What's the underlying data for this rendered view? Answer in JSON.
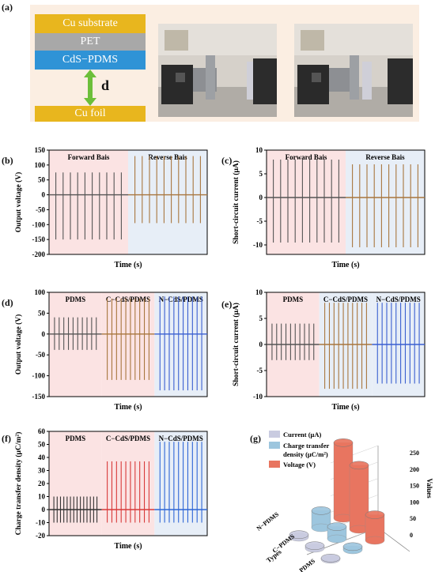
{
  "figure": {
    "panel_a": {
      "label": "(a)",
      "layers": [
        "Cu substrate",
        "PET",
        "CdS−PDMS"
      ],
      "gap_label": "d",
      "bottom_layer": "Cu foil",
      "colors": {
        "copper": "#e8b61e",
        "pet": "#a8a8a8",
        "cds": "#2f93d6",
        "arrow": "#6cbf3a",
        "background": "#fbeee2"
      }
    },
    "panel_b": {
      "label": "(b)",
      "ylabel": "Output voltage (V)",
      "xlabel": "Time (s)",
      "regions": [
        "Forward Bais",
        "Reverse Bais"
      ]
    },
    "panel_c": {
      "label": "(c)",
      "ylabel": "Short-circuit current (μA)",
      "xlabel": "Time (s)",
      "regions": [
        "Forward Bais",
        "Reverse Bais"
      ]
    },
    "panel_d": {
      "label": "(d)",
      "ylabel": "Output voltage (V)",
      "xlabel": "Time (s)",
      "regions": [
        "PDMS",
        "C−CdS/PDMS",
        "N−CdS/PDMS"
      ]
    },
    "panel_e": {
      "label": "(e)",
      "ylabel": "Short-circuit current (μA)",
      "xlabel": "Time (s)",
      "regions": [
        "PDMS",
        "C−CdS/PDMS",
        "N−CdS/PDMS"
      ]
    },
    "panel_f": {
      "label": "(f)",
      "ylabel": "Charge transfer density (μC/m²)",
      "xlabel": "Time (s)",
      "regions": [
        "PDMS",
        "C−CdS/PDMS",
        "N−CdS/PDMS"
      ]
    },
    "panel_g": {
      "label": "(g)",
      "legend": [
        "Current (μA)",
        "Charge transfer density (μC/m²)",
        "Voltage (V)"
      ],
      "legend_line2": "density (μC/m²)",
      "legend_line1": "Charge transfer",
      "zlabel": "Values",
      "xlabel": "Types",
      "types": [
        "N−PDMS",
        "C−PDMS",
        "PDMS"
      ]
    }
  },
  "chart_data": [
    {
      "id": "b",
      "type": "line",
      "xlabel": "Time (s)",
      "ylabel": "Output voltage (V)",
      "ylim": [
        -200,
        150
      ],
      "yticks": [
        -200,
        -150,
        -100,
        -50,
        0,
        50,
        100,
        150
      ],
      "regions": [
        {
          "name": "Forward Bais",
          "color": "#fbe3e3",
          "line_color": "#555555",
          "pulses": 10,
          "peak": 75,
          "trough": -150
        },
        {
          "name": "Reverse Bais",
          "color": "#e7eef7",
          "line_color": "#a8763e",
          "pulses": 10,
          "peak": 130,
          "trough": -95
        }
      ]
    },
    {
      "id": "c",
      "type": "line",
      "xlabel": "Time (s)",
      "ylabel": "Short-circuit current (μA)",
      "ylim": [
        -12,
        10
      ],
      "yticks": [
        -10,
        -5,
        0,
        5,
        10
      ],
      "regions": [
        {
          "name": "Forward Bais",
          "color": "#fbe3e3",
          "line_color": "#555555",
          "pulses": 10,
          "peak": 8,
          "trough": -9.5
        },
        {
          "name": "Reverse Bais",
          "color": "#e7eef7",
          "line_color": "#a8763e",
          "pulses": 10,
          "peak": 7,
          "trough": -10.5
        }
      ]
    },
    {
      "id": "d",
      "type": "line",
      "xlabel": "Time (s)",
      "ylabel": "Output voltage (V)",
      "ylim": [
        -150,
        100
      ],
      "yticks": [
        -150,
        -100,
        -50,
        0,
        50,
        100
      ],
      "regions": [
        {
          "name": "PDMS",
          "color": "#fbe3e3",
          "line_color": "#555555",
          "pulses": 10,
          "peak": 40,
          "trough": -38
        },
        {
          "name": "C−CdS/PDMS",
          "color": "#fbe3e3",
          "line_color": "#a8763e",
          "pulses": 10,
          "peak": 85,
          "trough": -110
        },
        {
          "name": "N−CdS/PDMS",
          "color": "#e7eef7",
          "line_color": "#3a5fd0",
          "pulses": 10,
          "peak": 90,
          "trough": -135
        }
      ]
    },
    {
      "id": "e",
      "type": "line",
      "xlabel": "Time (s)",
      "ylabel": "Short-circuit current (μA)",
      "ylim": [
        -10,
        10
      ],
      "yticks": [
        -10,
        -5,
        0,
        5,
        10
      ],
      "regions": [
        {
          "name": "PDMS",
          "color": "#fbe3e3",
          "line_color": "#555555",
          "pulses": 10,
          "peak": 4,
          "trough": -3
        },
        {
          "name": "C−CdS/PDMS",
          "color": "#e7eef7",
          "line_color": "#a8763e",
          "pulses": 10,
          "peak": 8,
          "trough": -8.5
        },
        {
          "name": "N−CdS/PDMS",
          "color": "#e7eef7",
          "line_color": "#3a5fd0",
          "pulses": 10,
          "peak": 8,
          "trough": -7.5
        }
      ]
    },
    {
      "id": "f",
      "type": "line",
      "xlabel": "Time (s)",
      "ylabel": "Charge transfer density (μC/m²)",
      "ylim": [
        -20,
        60
      ],
      "yticks": [
        -20,
        -10,
        0,
        10,
        20,
        30,
        40,
        50,
        60
      ],
      "regions": [
        {
          "name": "PDMS",
          "color": "#fbe3e3",
          "line_color": "#333333",
          "pulses": 14,
          "peak": 10,
          "trough": -10
        },
        {
          "name": "C−CdS/PDMS",
          "color": "#fbe3e3",
          "line_color": "#d83a3a",
          "pulses": 10,
          "peak": 37,
          "trough": -10
        },
        {
          "name": "N−CdS/PDMS",
          "color": "#e7eef7",
          "line_color": "#2e66d6",
          "pulses": 10,
          "peak": 52,
          "trough": -10
        }
      ]
    },
    {
      "id": "g",
      "type": "bar3d",
      "categories": [
        "N−PDMS",
        "C−PDMS",
        "PDMS"
      ],
      "series": [
        {
          "name": "Current (μA)",
          "color": "#c9cbe0",
          "values": [
            8,
            8,
            4
          ]
        },
        {
          "name": "Charge transfer density (μC/m²)",
          "color": "#9dc6de",
          "values": [
            52,
            37,
            10
          ]
        },
        {
          "name": "Voltage (V)",
          "color": "#e87560",
          "values": [
            230,
            195,
            78
          ]
        }
      ],
      "zlim": [
        0,
        250
      ],
      "zticks": [
        0,
        50,
        100,
        150,
        200,
        250
      ],
      "zlabel": "Values",
      "xlabel": "Types"
    }
  ]
}
